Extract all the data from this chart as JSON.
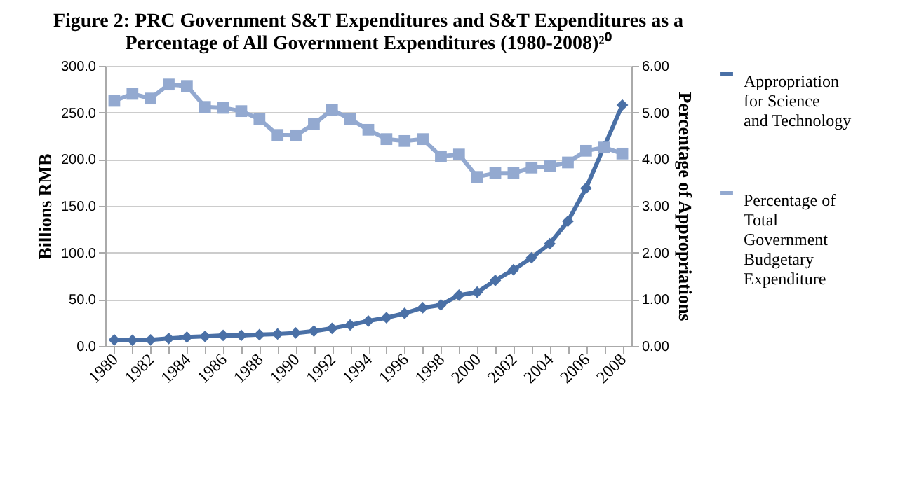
{
  "chart_data": {
    "type": "line",
    "title": [
      "Figure 2: PRC Government S&T Expenditures and S&T Expenditures as a",
      "Percentage of All Government Expenditures (1980-2008)²⁰"
    ],
    "ylabel": "Billions RMB",
    "y2label": "Percentage of Appropriations",
    "x": [
      1980,
      1981,
      1982,
      1983,
      1984,
      1985,
      1986,
      1987,
      1988,
      1989,
      1990,
      1991,
      1992,
      1993,
      1994,
      1995,
      1996,
      1997,
      1998,
      1999,
      2000,
      2001,
      2002,
      2003,
      2004,
      2005,
      2006,
      2007,
      2008
    ],
    "xlim": [
      1979.5,
      2008.5
    ],
    "xticks": [
      1980,
      {
        "value": 1981,
        "label": null
      },
      1982,
      {
        "value": 1983,
        "label": null
      },
      1984,
      {
        "value": 1985,
        "label": null
      },
      1986,
      {
        "value": 1987,
        "label": null
      },
      1988,
      {
        "value": 1989,
        "label": null
      },
      1990,
      {
        "value": 1991,
        "label": null
      },
      1992,
      {
        "value": 1993,
        "label": null
      },
      1994,
      {
        "value": 1995,
        "label": null
      },
      1996,
      {
        "value": 1997,
        "label": null
      },
      1998,
      {
        "value": 1999,
        "label": null
      },
      2000,
      {
        "value": 2001,
        "label": null
      },
      2002,
      {
        "value": 2003,
        "label": null
      },
      2004,
      {
        "value": 2005,
        "label": null
      },
      2006,
      {
        "value": 2007,
        "label": null
      },
      2008
    ],
    "ylim": [
      0,
      300
    ],
    "yticks": [
      {
        "value": 0,
        "label": "0.0"
      },
      {
        "value": 50,
        "label": "50.0"
      },
      {
        "value": 100,
        "label": "100.0"
      },
      {
        "value": 150,
        "label": "150.0"
      },
      {
        "value": 200,
        "label": "200.0"
      },
      {
        "value": 250,
        "label": "250.0"
      },
      {
        "value": 300,
        "label": "300.0"
      }
    ],
    "y2lim": [
      0,
      6
    ],
    "y2ticks": [
      {
        "value": 0,
        "label": "0.00"
      },
      {
        "value": 1,
        "label": "1.00"
      },
      {
        "value": 2,
        "label": "2.00"
      },
      {
        "value": 3,
        "label": "3.00"
      },
      {
        "value": 4,
        "label": "4.00"
      },
      {
        "value": 5,
        "label": "5.00"
      },
      {
        "value": 6,
        "label": "6.00"
      }
    ],
    "grid": "y",
    "legend": "right",
    "series": [
      {
        "name": "Appropriation for Science and Technology",
        "color": "#4a70a6",
        "marker": "diamond",
        "values": [
          6.5,
          6.1,
          6.5,
          8,
          9.5,
          10.3,
          11.3,
          11.3,
          12.1,
          12.8,
          13.9,
          16,
          18.9,
          22.5,
          26.8,
          30.2,
          34.9,
          40.9,
          43.9,
          54.4,
          57.6,
          70.3,
          81.6,
          94.5,
          109.5,
          133.5,
          168.9,
          213.5,
          258
        ]
      },
      {
        "name": "Percentage of Total Government Budgetary Expenditure",
        "color": "#93a9d0",
        "marker": "square",
        "axis": "y2",
        "values": [
          5.25,
          5.4,
          5.3,
          5.6,
          5.57,
          5.12,
          5.1,
          5.03,
          4.86,
          4.52,
          4.51,
          4.75,
          5.06,
          4.86,
          4.63,
          4.43,
          4.39,
          4.43,
          4.06,
          4.1,
          3.62,
          3.7,
          3.7,
          3.82,
          3.85,
          3.93,
          4.18,
          4.25,
          4.12
        ]
      }
    ]
  }
}
